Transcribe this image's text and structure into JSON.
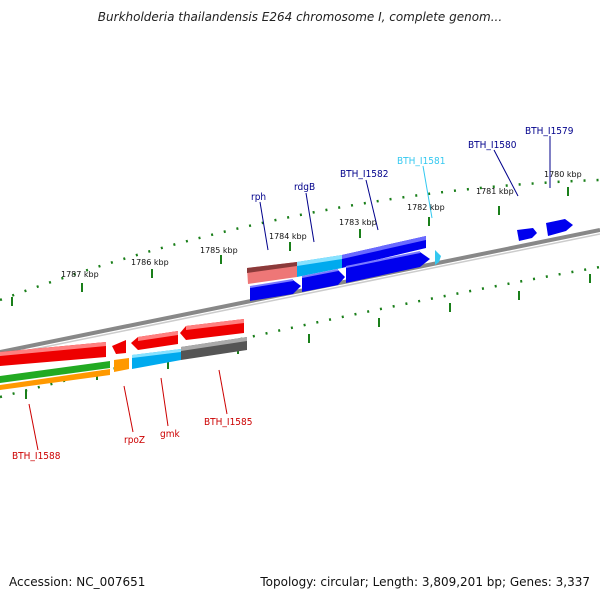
{
  "title": "Burkholderia thailandensis E264 chromosome I, complete genom...",
  "footer": {
    "accession_label": "Accession: NC_007651",
    "topology_label": "Topology: circular; Length: 3,809,201 bp; Genes: 3,337"
  },
  "scale_labels": [
    "1787 kbp",
    "1786 kbp",
    "1785 kbp",
    "1784 kbp",
    "1783 kbp",
    "1782 kbp",
    "1781 kbp",
    "1780 kbp"
  ],
  "forward_gene_labels": [
    "rph",
    "rdgB",
    "BTH_I1582",
    "BTH_I1581",
    "BTH_I1580",
    "BTH_I1579"
  ],
  "reverse_gene_labels": [
    "BTH_I1588",
    "rpoZ",
    "gmk",
    "BTH_I1585"
  ],
  "colors": {
    "forward_label": "#00008b",
    "forward_label_highlight": "#33c8f0",
    "reverse_label": "#cc0000",
    "backbone": "#888888",
    "tick": "#1a7f1a",
    "gene_blue": "#0000ee",
    "gene_red": "#ee0000",
    "gene_cyan": "#00aaee",
    "gene_salmon": "#ee7777",
    "gene_grey": "#555555",
    "gene_green": "#22aa22",
    "gene_orange": "#ff9900"
  }
}
